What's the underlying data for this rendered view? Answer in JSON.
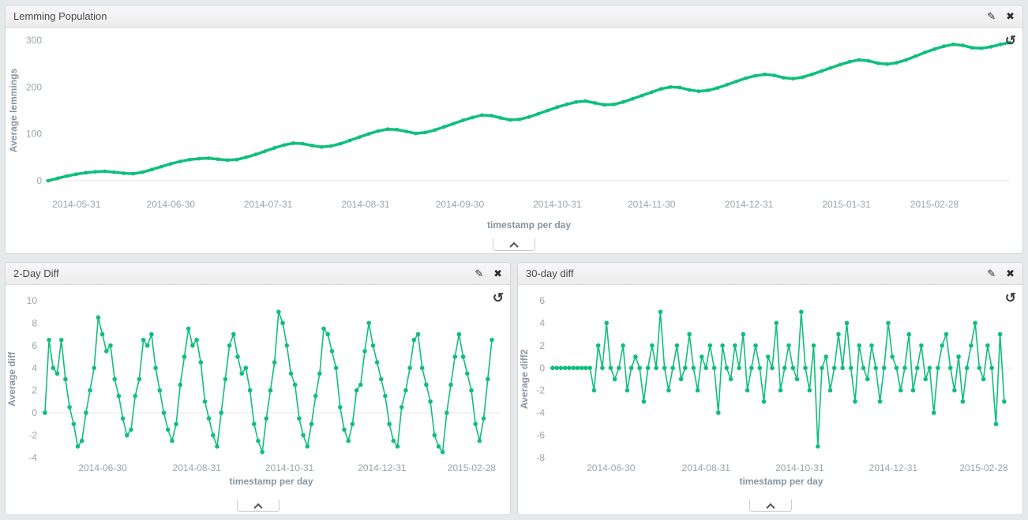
{
  "colors": {
    "accent_green": "#0fbf7c",
    "page_bg": "#e5e9ea",
    "panel_bg": "#ffffff",
    "tick_label": "#99a4ab",
    "axis_title": "#8795a0",
    "zero_line": "#e2e5e7",
    "icon": "#3c3c3c"
  },
  "icons": {
    "edit": "✎",
    "close": "✖",
    "zoom_out": "↺",
    "collapse": "chevron-up"
  },
  "panels": [
    {
      "title": "Lemming Population"
    },
    {
      "title": "2-Day Diff"
    },
    {
      "title": "30-day diff"
    }
  ],
  "chart_data": [
    {
      "type": "line",
      "title": "Lemming Population",
      "xlabel": "timestamp per day",
      "ylabel": "Average lemmings",
      "ylim": [
        0,
        300
      ],
      "yticks": [
        0,
        100,
        200,
        300
      ],
      "x_domain": [
        0,
        306
      ],
      "x_start": 0,
      "x_step": 3,
      "xticks": [
        {
          "x": 9,
          "label": "2014-05-31"
        },
        {
          "x": 39,
          "label": "2014-06-30"
        },
        {
          "x": 70,
          "label": "2014-07-31"
        },
        {
          "x": 101,
          "label": "2014-08-31"
        },
        {
          "x": 131,
          "label": "2014-09-30"
        },
        {
          "x": 162,
          "label": "2014-10-31"
        },
        {
          "x": 192,
          "label": "2014-11-30"
        },
        {
          "x": 223,
          "label": "2014-12-31"
        },
        {
          "x": 254,
          "label": "2015-01-31"
        },
        {
          "x": 282,
          "label": "2015-02-28"
        }
      ],
      "values": [
        0,
        5,
        10,
        14,
        17,
        19,
        20,
        18,
        16,
        15,
        18,
        24,
        30,
        36,
        41,
        45,
        47,
        48,
        46,
        44,
        45,
        50,
        56,
        63,
        70,
        76,
        80,
        79,
        75,
        72,
        74,
        79,
        86,
        93,
        100,
        106,
        110,
        109,
        105,
        101,
        103,
        108,
        115,
        122,
        129,
        135,
        140,
        139,
        134,
        130,
        131,
        136,
        143,
        150,
        157,
        163,
        168,
        170,
        166,
        162,
        163,
        168,
        175,
        182,
        189,
        196,
        200,
        199,
        194,
        191,
        193,
        198,
        205,
        212,
        219,
        224,
        227,
        225,
        220,
        218,
        221,
        227,
        234,
        241,
        248,
        254,
        258,
        256,
        251,
        249,
        252,
        258,
        266,
        274,
        281,
        287,
        291,
        289,
        284,
        283,
        286,
        291,
        295
      ],
      "line_width": 3.5,
      "dot_radius": 2.4,
      "grid": false,
      "legend": "none"
    },
    {
      "type": "line",
      "title": "2-Day Diff",
      "xlabel": "timestamp per day",
      "ylabel": "Average diff",
      "ylim": [
        -4,
        10
      ],
      "yticks": [
        -4,
        -2,
        0,
        2,
        4,
        6,
        8,
        10
      ],
      "x_domain": [
        0,
        300
      ],
      "x_start": 1,
      "x_step": 2.7,
      "xticks": [
        {
          "x": 39,
          "label": "2014-06-30"
        },
        {
          "x": 101,
          "label": "2014-08-31"
        },
        {
          "x": 162,
          "label": "2014-10-31"
        },
        {
          "x": 223,
          "label": "2014-12-31"
        },
        {
          "x": 282,
          "label": "2015-02-28"
        }
      ],
      "values": [
        0,
        6.5,
        4,
        3.5,
        6.5,
        3,
        0.5,
        -1,
        -3,
        -2.5,
        0,
        2,
        4,
        8.5,
        7,
        5.5,
        6,
        3,
        1.5,
        -0.5,
        -2,
        -1.5,
        1.5,
        3,
        6.5,
        6,
        7,
        4,
        2,
        0,
        -1.5,
        -2.5,
        -1,
        2.5,
        5,
        7.5,
        6,
        6.5,
        4.5,
        1,
        -0.5,
        -2,
        -3,
        0,
        3,
        6,
        7,
        5,
        3.5,
        4,
        2,
        -1,
        -2.5,
        -3.5,
        -0.5,
        2,
        4.5,
        9,
        8,
        6,
        3.5,
        2.5,
        -0.5,
        -2,
        -3,
        -1,
        1.5,
        3.5,
        7.5,
        7,
        5.5,
        4,
        0.5,
        -1.5,
        -2.5,
        -1,
        2,
        2.5,
        5.5,
        8,
        6,
        4.5,
        3,
        1.5,
        -1,
        -2.5,
        -3,
        0.5,
        2,
        4,
        6.5,
        7,
        4,
        2.5,
        1,
        -2,
        -3,
        -3.5,
        0,
        2.5,
        5,
        7,
        5,
        3.5,
        2,
        -1,
        -2.5,
        -0.5,
        3,
        6.5
      ],
      "line_width": 1.6,
      "dot_radius": 2.8,
      "grid": false,
      "legend": "none"
    },
    {
      "type": "line",
      "title": "30-day diff",
      "xlabel": "timestamp per day",
      "ylabel": "Average diff2",
      "ylim": [
        -8,
        6
      ],
      "yticks": [
        -8,
        -6,
        -4,
        -2,
        0,
        2,
        4,
        6
      ],
      "x_domain": [
        0,
        300
      ],
      "x_start": 1,
      "x_step": 2.7,
      "xticks": [
        {
          "x": 39,
          "label": "2014-06-30"
        },
        {
          "x": 101,
          "label": "2014-08-31"
        },
        {
          "x": 162,
          "label": "2014-10-31"
        },
        {
          "x": 223,
          "label": "2014-12-31"
        },
        {
          "x": 282,
          "label": "2015-02-28"
        }
      ],
      "values": [
        0,
        0,
        0,
        0,
        0,
        0,
        0,
        0,
        0,
        0,
        -2,
        2,
        0,
        4,
        0,
        -1,
        0,
        2,
        -2,
        0,
        1,
        0,
        -3,
        0,
        2,
        0,
        5,
        0,
        -2,
        0,
        2,
        -1,
        0,
        3,
        0,
        -2,
        1,
        0,
        2,
        0,
        -4,
        2,
        0,
        -1,
        2,
        0,
        3,
        -2,
        0,
        2,
        0,
        -3,
        1,
        0,
        4,
        -2,
        0,
        2,
        0,
        -1,
        5,
        0,
        -2,
        2,
        -7,
        0,
        1,
        -2,
        0,
        3,
        0,
        4,
        0,
        -3,
        2,
        0,
        -1,
        2,
        0,
        -3,
        0,
        4,
        1,
        0,
        -2,
        0,
        3,
        -2,
        0,
        2,
        -1,
        0,
        -4,
        0,
        2,
        3,
        0,
        -2,
        1,
        -3,
        0,
        2,
        4,
        0,
        -1,
        2,
        0,
        -5,
        3,
        -3
      ],
      "line_width": 1.6,
      "dot_radius": 2.8,
      "grid": false,
      "legend": "none"
    }
  ]
}
